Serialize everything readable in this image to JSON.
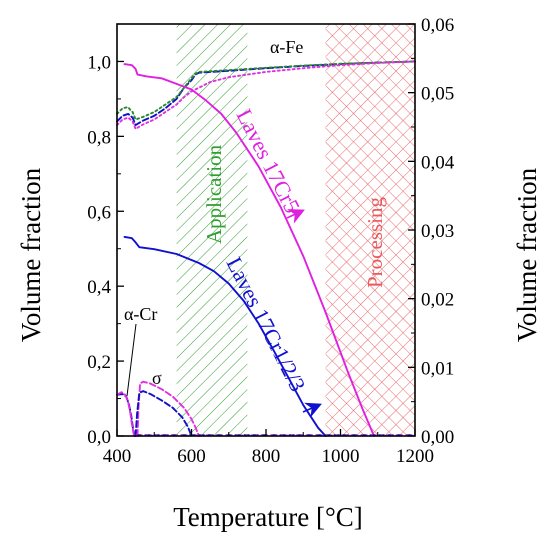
{
  "chart_data": {
    "type": "line",
    "xlabel": "Temperature [°C]",
    "ylabel_left": "Volume fraction",
    "ylabel_right": "Volume fraction",
    "xlim": [
      400,
      1200
    ],
    "ylim_left": [
      0,
      1.1
    ],
    "ylim_right": [
      0,
      0.06
    ],
    "x_ticks": [
      {
        "value": 400,
        "label": "400"
      },
      {
        "value": 600,
        "label": "600"
      },
      {
        "value": 800,
        "label": "800"
      },
      {
        "value": 1000,
        "label": "1000"
      },
      {
        "value": 1200,
        "label": "1200"
      }
    ],
    "y_left_ticks": [
      {
        "value": 0,
        "label": "0,0"
      },
      {
        "value": 0.2,
        "label": "0,2"
      },
      {
        "value": 0.4,
        "label": "0,4"
      },
      {
        "value": 0.6,
        "label": "0,6"
      },
      {
        "value": 0.8,
        "label": "0,8"
      },
      {
        "value": 1.0,
        "label": "1,0"
      }
    ],
    "y_right_ticks": [
      {
        "value": 0,
        "label": "0,00"
      },
      {
        "value": 0.01,
        "label": "0,01"
      },
      {
        "value": 0.02,
        "label": "0,02"
      },
      {
        "value": 0.03,
        "label": "0,03"
      },
      {
        "value": 0.04,
        "label": "0,04"
      },
      {
        "value": 0.05,
        "label": "0,05"
      },
      {
        "value": 0.06,
        "label": "0,06"
      }
    ],
    "regions": [
      {
        "name": "Application",
        "from": 560,
        "to": 750,
        "color": "#2e9e2e",
        "pattern": "diagonal"
      },
      {
        "name": "Processing",
        "from": 960,
        "to": 1200,
        "color": "#e8585c",
        "pattern": "crosshatch"
      }
    ],
    "series": [
      {
        "key": "fe_blue",
        "axis": "left",
        "color": "#1010c8",
        "style": "dash",
        "x": [
          400,
          415,
          430,
          436,
          442,
          450,
          470,
          500,
          530,
          560,
          580,
          600,
          610,
          620,
          700,
          800,
          900,
          1000,
          1100,
          1200
        ],
        "y": [
          0.84,
          0.855,
          0.86,
          0.855,
          0.85,
          0.83,
          0.842,
          0.855,
          0.875,
          0.9,
          0.93,
          0.95,
          0.965,
          0.97,
          0.975,
          0.982,
          0.988,
          0.993,
          0.997,
          1.0
        ]
      },
      {
        "key": "fe_green",
        "axis": "left",
        "color": "#2a8a2a",
        "style": "dot",
        "x": [
          400,
          415,
          430,
          436,
          442,
          450,
          470,
          500,
          530,
          560,
          580,
          600,
          610,
          620,
          700,
          800,
          900,
          1000,
          1100,
          1200
        ],
        "y": [
          0.86,
          0.875,
          0.878,
          0.87,
          0.865,
          0.845,
          0.852,
          0.865,
          0.885,
          0.905,
          0.93,
          0.955,
          0.967,
          0.972,
          0.977,
          0.983,
          0.989,
          0.994,
          0.997,
          1.0
        ]
      },
      {
        "key": "fe_magenta",
        "axis": "left",
        "color": "#e030e0",
        "style": "dot",
        "x": [
          400,
          415,
          430,
          436,
          442,
          450,
          470,
          500,
          530,
          560,
          580,
          600,
          620,
          650,
          700,
          800,
          900,
          1000,
          1100,
          1200
        ],
        "y": [
          0.83,
          0.845,
          0.85,
          0.845,
          0.84,
          0.82,
          0.832,
          0.845,
          0.865,
          0.885,
          0.905,
          0.92,
          0.93,
          0.945,
          0.958,
          0.972,
          0.982,
          0.99,
          0.996,
          1.0
        ]
      },
      {
        "key": "laves_17cr5",
        "axis": "left",
        "color": "#e020e0",
        "style": "solid",
        "x": [
          420,
          440,
          450,
          455,
          480,
          520,
          560,
          600,
          640,
          680,
          720,
          780,
          840,
          900,
          960,
          1020,
          1060,
          1090
        ],
        "y": [
          0.993,
          0.99,
          0.98,
          0.965,
          0.96,
          0.955,
          0.94,
          0.925,
          0.895,
          0.86,
          0.81,
          0.72,
          0.61,
          0.48,
          0.33,
          0.17,
          0.07,
          0.0
        ]
      },
      {
        "key": "laves_17cr123",
        "axis": "right",
        "color": "#1010d0",
        "style": "solid",
        "x": [
          420,
          440,
          450,
          460,
          500,
          560,
          620,
          660,
          700,
          740,
          780,
          820,
          860,
          900,
          940,
          960
        ],
        "y": [
          0.029,
          0.0288,
          0.0282,
          0.0275,
          0.0272,
          0.0265,
          0.0252,
          0.024,
          0.0222,
          0.0197,
          0.0164,
          0.0125,
          0.0085,
          0.0045,
          0.0012,
          0.0
        ]
      },
      {
        "key": "acr_blue",
        "axis": "left",
        "color": "#1010c8",
        "style": "dash",
        "x": [
          400,
          415,
          425,
          432,
          438,
          443,
          448
        ],
        "y": [
          0.11,
          0.112,
          0.105,
          0.085,
          0.055,
          0.02,
          0.0
        ]
      },
      {
        "key": "acr_magenta",
        "axis": "left",
        "color": "#e030e0",
        "style": "dash",
        "x": [
          400,
          412,
          422,
          430,
          436,
          441,
          446
        ],
        "y": [
          0.11,
          0.117,
          0.11,
          0.09,
          0.06,
          0.025,
          0.0
        ]
      },
      {
        "key": "sigma_magenta",
        "axis": "left",
        "color": "#e030e0",
        "style": "dash",
        "x": [
          455,
          458,
          462,
          470,
          490,
          520,
          550,
          580,
          600,
          612,
          620
        ],
        "y": [
          0.0,
          0.08,
          0.14,
          0.145,
          0.14,
          0.125,
          0.105,
          0.075,
          0.045,
          0.02,
          0.0
        ]
      },
      {
        "key": "sigma_blue",
        "axis": "left",
        "color": "#1010c8",
        "style": "dash",
        "x": [
          450,
          454,
          460,
          470,
          490,
          520,
          550,
          575,
          590,
          600
        ],
        "y": [
          0.0,
          0.06,
          0.115,
          0.12,
          0.112,
          0.095,
          0.075,
          0.05,
          0.025,
          0.0
        ]
      }
    ],
    "labels": {
      "alpha_fe": "α-Fe",
      "alpha_cr": "α-Cr",
      "sigma": "σ",
      "laves_17cr5": "Laves 17Cr5",
      "laves_17cr123": "Laves 17Cr1/2/3",
      "application": "Application",
      "processing": "Processing"
    },
    "colors": {
      "application": "#2e9e2e",
      "processing": "#e8585c",
      "laves_17cr5": "#e020e0",
      "laves_17cr123": "#1010d0"
    },
    "grid": false,
    "legend": "none"
  }
}
